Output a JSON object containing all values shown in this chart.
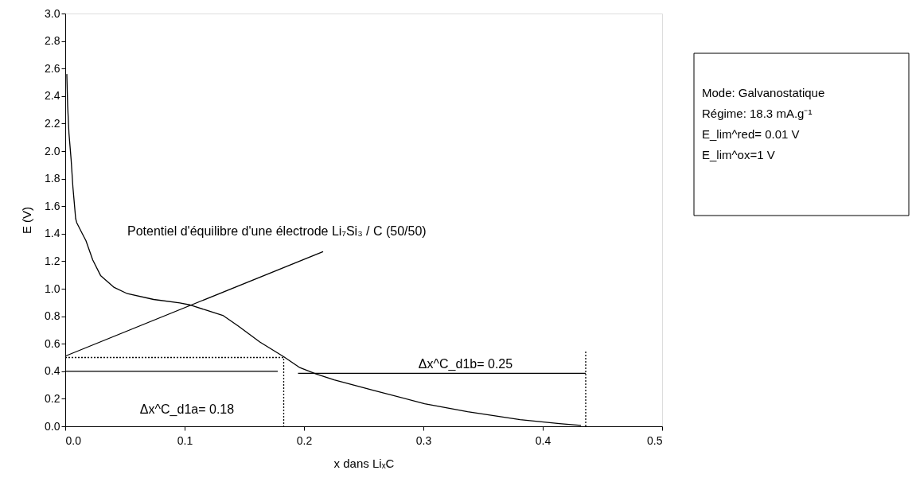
{
  "chart_data": {
    "type": "line",
    "xlabel": "x dans LiₓC",
    "ylabel": "E (V)",
    "xlim": [
      0,
      0.5
    ],
    "xticks": [
      {
        "value": 0,
        "label": "0.0"
      },
      0.1,
      0.2,
      0.3,
      0.4,
      0.5
    ],
    "ylim": [
      0,
      3
    ],
    "yticks": [
      {
        "value": 0,
        "label": "0.0"
      },
      0.2,
      0.4,
      0.6,
      0.8,
      {
        "value": 1,
        "label": "1.0"
      },
      1.2,
      1.4,
      1.6,
      1.8,
      {
        "value": 2,
        "label": "2.0"
      },
      2.2,
      2.4,
      2.6,
      2.8,
      {
        "value": 3,
        "label": "3.0"
      }
    ],
    "grid": false,
    "marker": "none",
    "series": [
      {
        "color": "#000000",
        "line_style": "solid",
        "x": [
          0.0013,
          0.002,
          0.0031,
          0.0049,
          0.0064,
          0.0087,
          0.0096,
          0.014,
          0.0173,
          0.023,
          0.0296,
          0.041,
          0.052,
          0.074,
          0.096,
          0.104,
          0.118,
          0.132,
          0.145,
          0.163,
          0.183,
          0.196,
          0.21,
          0.2253,
          0.259,
          0.301,
          0.337,
          0.381,
          0.414,
          0.432
        ],
        "values": [
          2.56,
          2.33,
          2.13,
          1.94,
          1.74,
          1.51,
          1.48,
          1.405,
          1.35,
          1.21,
          1.096,
          1.009,
          0.964,
          0.922,
          0.897,
          0.883,
          0.844,
          0.806,
          0.728,
          0.613,
          0.506,
          0.429,
          0.381,
          0.337,
          0.26,
          0.164,
          0.106,
          0.048,
          0.019,
          0.006
        ]
      },
      {
        "color": "#000000",
        "line_style": "solid",
        "x": [
          0.216,
          0.0
        ],
        "values": [
          1.27,
          0.51
        ]
      },
      {
        "color": "#000000",
        "line_style": "dotted",
        "x": [
          0.0,
          0.183,
          0.183
        ],
        "values": [
          0.5,
          0.5,
          0.0
        ]
      },
      {
        "color": "#000000",
        "line_style": "dotted",
        "x": [
          0.436,
          0.436
        ],
        "values": [
          0.0,
          0.55
        ]
      },
      {
        "color": "#000000",
        "line_style": "solid",
        "x": [
          0.0,
          0.178
        ],
        "values": [
          0.4,
          0.4
        ]
      },
      {
        "color": "#000000",
        "line_style": "solid",
        "x": [
          0.195,
          0.436
        ],
        "values": [
          0.385,
          0.385
        ]
      }
    ],
    "annotations": [
      "Potentiel d'équilibre d'une électrode Li₇Si₃ / C (50/50)",
      "Δx^C_d1a= 0.18",
      "Δx^C_d1b= 0.25",
      "Mode:  Galvanostatique",
      "Régime: 18.3 mA.g⁻¹",
      "E_lim^red= 0.01 V",
      "E_lim^ox=1 V"
    ]
  }
}
